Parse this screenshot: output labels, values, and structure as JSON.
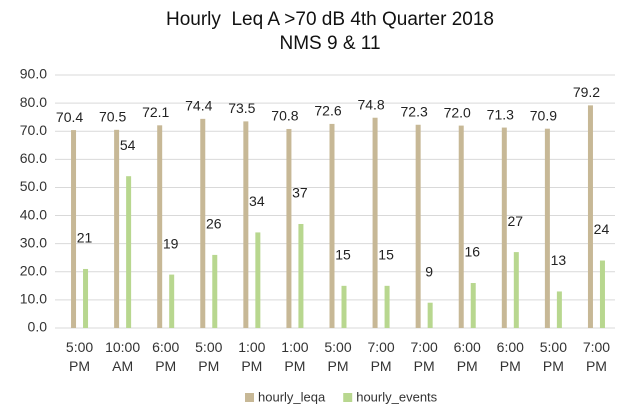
{
  "chart_data": {
    "type": "bar",
    "title": "Hourly  Leq A >70 dB 4th Quarter 2018",
    "subtitle": "NMS 9 & 11",
    "categories": [
      "5:00 PM",
      "10:00 AM",
      "6:00 PM",
      "5:00 PM",
      "1:00 PM",
      "1:00 PM",
      "5:00 PM",
      "7:00 PM",
      "7:00 PM",
      "6:00 PM",
      "6:00 PM",
      "5:00 PM",
      "7:00 PM"
    ],
    "series": [
      {
        "name": "hourly_leqa",
        "color": "#c7b896",
        "values": [
          70.4,
          70.5,
          72.1,
          74.4,
          73.5,
          70.8,
          72.6,
          74.8,
          72.3,
          72.0,
          71.3,
          70.9,
          79.2
        ],
        "value_labels": [
          "70.4",
          "70.5",
          "72.1",
          "74.4",
          "73.5",
          "70.8",
          "72.6",
          "74.8",
          "72.3",
          "72.0",
          "71.3",
          "70.9",
          "79.2"
        ]
      },
      {
        "name": "hourly_events",
        "color": "#b8d78f",
        "values": [
          21,
          54,
          19,
          26,
          34,
          37,
          15,
          15,
          9,
          16,
          27,
          13,
          24
        ]
      }
    ],
    "ylim": [
      0,
      90
    ],
    "yticks": [
      {
        "value": 0,
        "label": "0.0"
      },
      {
        "value": 10,
        "label": "10.0"
      },
      {
        "value": 20,
        "label": "20.0"
      },
      {
        "value": 30,
        "label": "30.0"
      },
      {
        "value": 40,
        "label": "40.0"
      },
      {
        "value": 50,
        "label": "50.0"
      },
      {
        "value": 60,
        "label": "60.0"
      },
      {
        "value": 70,
        "label": "70.0"
      },
      {
        "value": 80,
        "label": "80.0"
      },
      {
        "value": 90,
        "label": "90.0"
      }
    ],
    "grid": true,
    "legend": "bottom"
  }
}
